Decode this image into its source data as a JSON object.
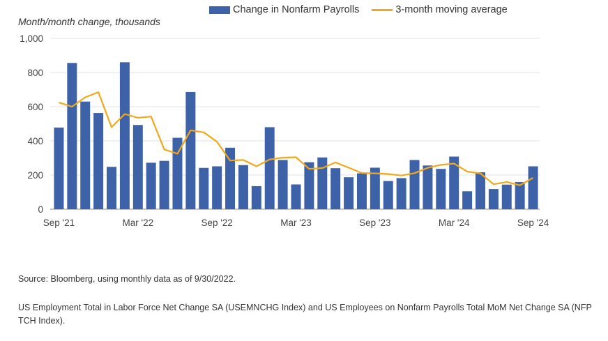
{
  "chart_data": {
    "type": "bar+line",
    "ylabel": "Month/month change, thousands",
    "ylim": [
      0,
      1000
    ],
    "yticks": [
      "0",
      "200",
      "400",
      "600",
      "800",
      "1,000"
    ],
    "ytick_values": [
      0,
      200,
      400,
      600,
      800,
      1000
    ],
    "x_tick_labels": [
      {
        "index": 0,
        "label": "Sep '21"
      },
      {
        "index": 6,
        "label": "Mar '22"
      },
      {
        "index": 12,
        "label": "Sep '22"
      },
      {
        "index": 18,
        "label": "Mar '23"
      },
      {
        "index": 24,
        "label": "Sep '23"
      },
      {
        "index": 30,
        "label": "Mar '24"
      },
      {
        "index": 36,
        "label": "Sep '24"
      }
    ],
    "categories": [
      "Sep '21",
      "Oct '21",
      "Nov '21",
      "Dec '21",
      "Jan '22",
      "Feb '22",
      "Mar '22",
      "Apr '22",
      "May '22",
      "Jun '22",
      "Jul '22",
      "Aug '22",
      "Sep '22",
      "Oct '22",
      "Nov '22",
      "Dec '22",
      "Jan '23",
      "Feb '23",
      "Mar '23",
      "Apr '23",
      "May '23",
      "Jun '23",
      "Jul '23",
      "Aug '23",
      "Sep '23",
      "Oct '23",
      "Nov '23",
      "Dec '23",
      "Jan '24",
      "Feb '24",
      "Mar '24",
      "Apr '24",
      "May '24",
      "Jun '24",
      "Jul '24",
      "Aug '24",
      "Sep '24"
    ],
    "series": [
      {
        "name": "Change in Nonfarm Payrolls",
        "type": "bar",
        "color": "#3d62a8",
        "values": [
          478,
          856,
          630,
          563,
          248,
          860,
          493,
          272,
          283,
          418,
          686,
          242,
          251,
          360,
          258,
          135,
          480,
          288,
          145,
          275,
          303,
          240,
          187,
          210,
          243,
          165,
          182,
          288,
          256,
          236,
          308,
          105,
          216,
          118,
          144,
          159,
          251
        ]
      },
      {
        "name": "3-month moving average",
        "type": "line",
        "color": "#f2a81d",
        "values": [
          625,
          600,
          655,
          685,
          480,
          557,
          535,
          542,
          350,
          325,
          462,
          450,
          395,
          285,
          288,
          251,
          291,
          302,
          304,
          236,
          241,
          274,
          243,
          212,
          210,
          206,
          197,
          211,
          242,
          260,
          267,
          220,
          210,
          146,
          159,
          140,
          184
        ]
      }
    ],
    "legend_position": "top",
    "grid": true
  },
  "source": "Source: Bloomberg, using monthly data as of 9/30/2022.",
  "note": "US Employment Total in Labor Force Net Change SA (USEMNCHG Index) and US Employees on Nonfarm Payrolls Total MoM Net Change SA (NFP TCH Index)."
}
